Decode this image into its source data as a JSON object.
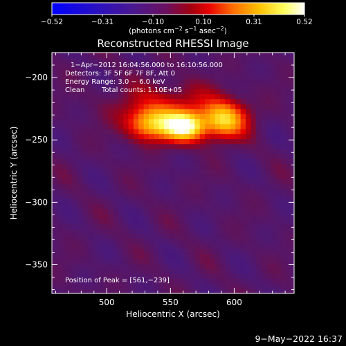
{
  "colorbar": {
    "ticks": [
      "−0.52",
      "−0.31",
      "−0.10",
      "0.10",
      "0.31",
      "0.52"
    ],
    "units_main": "(photons cm",
    "units_sup1": "−2",
    "units_mid": " s",
    "units_sup2": "−1",
    "units_end": " asec",
    "units_sup3": "−2",
    "units_close": ")"
  },
  "info": {
    "time_range": "1−Apr−2012 16:04:56.000 to 16:10:56.000",
    "detectors": "Detectors: 3F 5F 6F 7F 8F, Att 0",
    "energy": "Energy Range: 3.0 − 6.0 keV",
    "method": "Clean",
    "counts": "Total counts: 1.10E+05",
    "peak": "Position of Peak = [561,−239]"
  },
  "footer": {
    "date": "9−May−2022 16:37"
  },
  "chart_data": {
    "type": "heatmap",
    "title": "Reconstructed RHESSI Image",
    "xlabel": "Heliocentric X (arcsec)",
    "ylabel": "Heliocentric Y (arcsec)",
    "xlim": [
      457,
      647
    ],
    "ylim": [
      -373,
      -180
    ],
    "x_ticks": [
      500,
      550,
      600
    ],
    "y_ticks": [
      -200,
      -250,
      -300,
      -350
    ],
    "x_tick_labels": [
      "500",
      "550",
      "600"
    ],
    "y_tick_labels": [
      "−200",
      "−250",
      "−300",
      "−350"
    ],
    "colorbar_range": [
      -0.52,
      0.52
    ],
    "colormap": "heat (blue−purple−red−yellow−white)",
    "colormap_stops": [
      "#0000ff",
      "#3a0aa0",
      "#5a1a7a",
      "#8a0a3a",
      "#ff0000",
      "#ff9a00",
      "#ffff40",
      "#ffffff"
    ],
    "background_level": -0.05,
    "sources": [
      {
        "x": 561,
        "y": -239,
        "peak": 0.52,
        "sigma_x": 11,
        "sigma_y": 8
      },
      {
        "x": 535,
        "y": -237,
        "peak": 0.36,
        "sigma_x": 13,
        "sigma_y": 9
      },
      {
        "x": 592,
        "y": -234,
        "peak": 0.4,
        "sigma_x": 12,
        "sigma_y": 10
      },
      {
        "x": 550,
        "y": -222,
        "peak": 0.14,
        "sigma_x": 30,
        "sigma_y": 12
      }
    ],
    "peak_position": [
      561,
      -239
    ]
  }
}
